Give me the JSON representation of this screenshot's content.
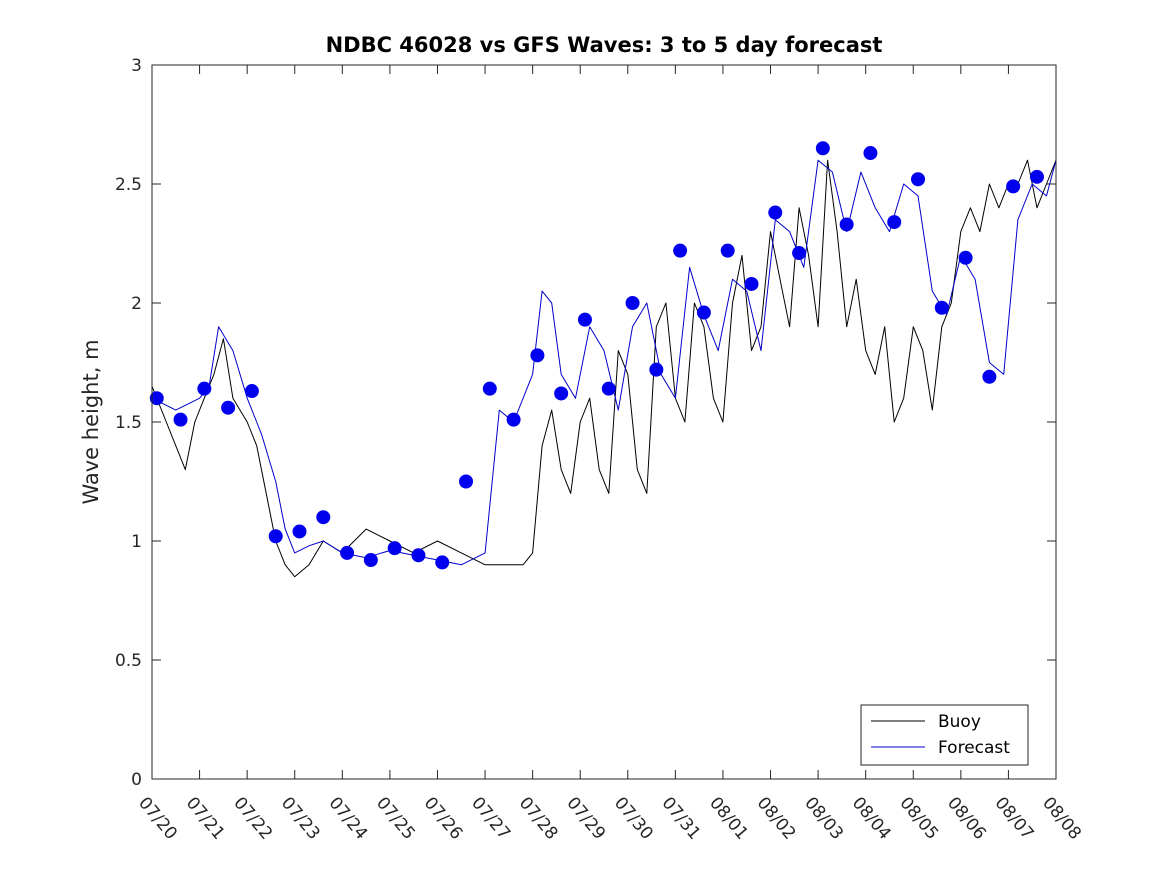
{
  "chart_data": {
    "type": "line",
    "title": "NDBC 46028 vs GFS Waves: 3 to 5 day forecast",
    "xlabel": "",
    "ylabel": "Wave height, m",
    "xlim": [
      "07/20",
      "08/08"
    ],
    "ylim": [
      0,
      3
    ],
    "x_tick_labels": [
      "07/20",
      "07/21",
      "07/22",
      "07/23",
      "07/24",
      "07/25",
      "07/26",
      "07/27",
      "07/28",
      "07/29",
      "07/30",
      "07/31",
      "08/01",
      "08/02",
      "08/03",
      "08/04",
      "08/05",
      "08/06",
      "08/07",
      "08/08"
    ],
    "y_ticks": [
      0,
      0.5,
      1,
      1.5,
      2,
      2.5,
      3
    ],
    "y_tick_labels": [
      "0",
      "0.5",
      "1",
      "1.5",
      "2",
      "2.5",
      "3"
    ],
    "grid": false,
    "legend_position": "bottom-right",
    "legend": [
      {
        "label": "Buoy",
        "color": "#000000"
      },
      {
        "label": "Forecast",
        "color": "#0000cc"
      }
    ],
    "series": [
      {
        "name": "Buoy",
        "color": "#000000",
        "x": [
          0,
          0.3,
          0.5,
          0.7,
          0.9,
          1.1,
          1.3,
          1.5,
          1.7,
          2,
          2.2,
          2.4,
          2.6,
          2.8,
          3,
          3.3,
          3.6,
          4,
          4.5,
          5,
          5.5,
          6,
          6.5,
          7,
          7.3,
          7.6,
          7.8,
          8,
          8.2,
          8.4,
          8.6,
          8.8,
          9,
          9.2,
          9.4,
          9.6,
          9.8,
          10,
          10.2,
          10.4,
          10.6,
          10.8,
          11,
          11.2,
          11.4,
          11.6,
          11.8,
          12,
          12.2,
          12.4,
          12.6,
          12.8,
          13,
          13.2,
          13.4,
          13.6,
          13.8,
          14,
          14.2,
          14.4,
          14.6,
          14.8,
          15,
          15.2,
          15.4,
          15.6,
          15.8,
          16,
          16.2,
          16.4,
          16.6,
          16.8,
          17,
          17.2,
          17.4,
          17.6,
          17.8,
          18,
          18.2,
          18.4,
          18.6,
          18.8,
          19
        ],
        "y": [
          1.65,
          1.5,
          1.4,
          1.3,
          1.5,
          1.6,
          1.7,
          1.85,
          1.6,
          1.5,
          1.4,
          1.2,
          1.0,
          0.9,
          0.85,
          0.9,
          1.0,
          0.95,
          1.05,
          1.0,
          0.95,
          1.0,
          0.95,
          0.9,
          0.9,
          0.9,
          0.9,
          0.95,
          1.4,
          1.55,
          1.3,
          1.2,
          1.5,
          1.6,
          1.3,
          1.2,
          1.8,
          1.7,
          1.3,
          1.2,
          1.9,
          2.0,
          1.6,
          1.5,
          2.0,
          1.9,
          1.6,
          1.5,
          2.0,
          2.2,
          1.8,
          1.9,
          2.3,
          2.1,
          1.9,
          2.4,
          2.2,
          1.9,
          2.6,
          2.3,
          1.9,
          2.1,
          1.8,
          1.7,
          1.9,
          1.5,
          1.6,
          1.9,
          1.8,
          1.55,
          1.9,
          2.0,
          2.3,
          2.4,
          2.3,
          2.5,
          2.4,
          2.5,
          2.5,
          2.6,
          2.4,
          2.5,
          2.6
        ]
      },
      {
        "name": "Forecast",
        "color": "#0000cc",
        "x": [
          0,
          0.5,
          1,
          1.2,
          1.4,
          1.7,
          2,
          2.3,
          2.6,
          2.8,
          3,
          3.3,
          3.6,
          4,
          4.5,
          5,
          5.5,
          6,
          6.5,
          7,
          7.3,
          7.6,
          8,
          8.2,
          8.4,
          8.6,
          8.9,
          9.2,
          9.5,
          9.8,
          10.1,
          10.4,
          10.7,
          11,
          11.3,
          11.6,
          11.9,
          12.2,
          12.5,
          12.8,
          13.1,
          13.4,
          13.7,
          14,
          14.3,
          14.6,
          14.9,
          15.2,
          15.5,
          15.8,
          16.1,
          16.4,
          16.7,
          17,
          17.3,
          17.6,
          17.9,
          18.2,
          18.5,
          18.8,
          19
        ],
        "y": [
          1.6,
          1.55,
          1.6,
          1.65,
          1.9,
          1.8,
          1.6,
          1.45,
          1.25,
          1.05,
          0.95,
          0.98,
          1.0,
          0.95,
          0.93,
          0.96,
          0.94,
          0.92,
          0.9,
          0.95,
          1.55,
          1.5,
          1.7,
          2.05,
          2.0,
          1.7,
          1.6,
          1.9,
          1.8,
          1.55,
          1.9,
          2.0,
          1.7,
          1.6,
          2.15,
          1.95,
          1.8,
          2.1,
          2.05,
          1.8,
          2.35,
          2.3,
          2.15,
          2.6,
          2.55,
          2.3,
          2.55,
          2.4,
          2.3,
          2.5,
          2.45,
          2.05,
          1.95,
          2.2,
          2.1,
          1.75,
          1.7,
          2.35,
          2.5,
          2.45,
          2.6
        ]
      }
    ],
    "forecast_markers": {
      "color": "#0000ee",
      "x": [
        0.1,
        0.6,
        1.1,
        1.6,
        2.1,
        2.6,
        3.1,
        3.6,
        4.1,
        4.6,
        5.1,
        5.6,
        6.1,
        6.6,
        7.1,
        7.6,
        8.1,
        8.6,
        9.1,
        9.6,
        10.1,
        10.6,
        11.1,
        11.6,
        12.1,
        12.6,
        13.1,
        13.6,
        14.1,
        14.6,
        15.1,
        15.6,
        16.1,
        16.6,
        17.1,
        17.6,
        18.1,
        18.6
      ],
      "y": [
        1.6,
        1.51,
        1.64,
        1.56,
        1.63,
        1.02,
        1.04,
        1.1,
        0.95,
        0.92,
        0.97,
        0.94,
        0.91,
        1.25,
        1.64,
        1.51,
        1.78,
        1.62,
        1.93,
        1.64,
        2.0,
        1.72,
        2.22,
        1.96,
        2.22,
        2.08,
        2.38,
        2.21,
        2.65,
        2.33,
        2.63,
        2.34,
        2.52,
        1.98,
        2.19,
        1.69,
        2.49,
        2.53
      ]
    }
  }
}
